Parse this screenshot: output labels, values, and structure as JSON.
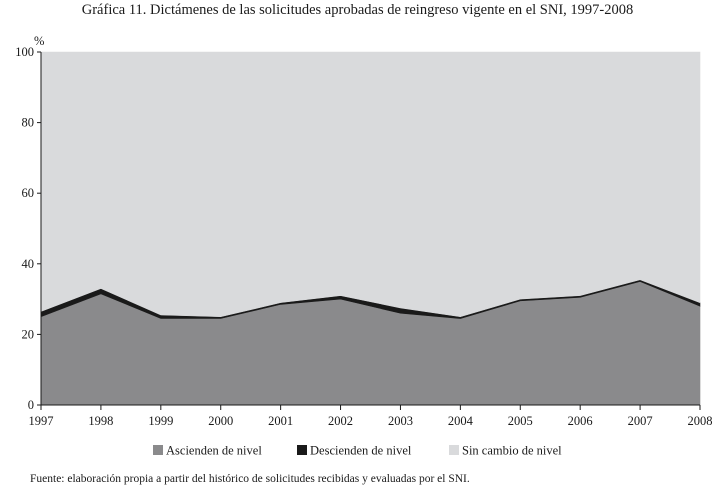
{
  "title": "Gráfica 11. Dictámenes de las solicitudes aprobadas de reingreso vigente en el SNI, 1997-2008",
  "source": "Fuente: elaboración propia a partir del histórico de solicitudes recibidas y evaluadas por el SNI.",
  "colors": {
    "ascienden": "#8a8a8c",
    "descienden": "#1a1a1a",
    "sin_cambio": "#d9dadc"
  },
  "chart_data": {
    "type": "area",
    "stacked": true,
    "title": "Gráfica 11. Dictámenes de las solicitudes aprobadas de reingreso vigente en el SNI, 1997-2008",
    "xlabel": "",
    "ylabel": "%",
    "ylim": [
      0,
      100
    ],
    "yticks": [
      0,
      20,
      40,
      60,
      80,
      100
    ],
    "categories": [
      "1997",
      "1998",
      "1999",
      "2000",
      "2001",
      "2002",
      "2003",
      "2004",
      "2005",
      "2006",
      "2007",
      "2008"
    ],
    "series": [
      {
        "name": "Ascienden de nivel",
        "values": [
          25,
          31.5,
          24.5,
          24.5,
          28.5,
          30,
          26,
          24.5,
          29.5,
          30.5,
          35,
          28
        ]
      },
      {
        "name": "Descienden de nivel",
        "values": [
          1.5,
          1.5,
          1,
          0.5,
          0.5,
          1,
          1.5,
          0.5,
          0.5,
          0.5,
          0.5,
          1
        ]
      },
      {
        "name": "Sin cambio de nivel",
        "values": [
          73.5,
          67,
          74.5,
          75,
          71,
          69,
          72.5,
          75,
          70,
          69,
          64.5,
          71
        ]
      }
    ],
    "legend_position": "bottom"
  }
}
